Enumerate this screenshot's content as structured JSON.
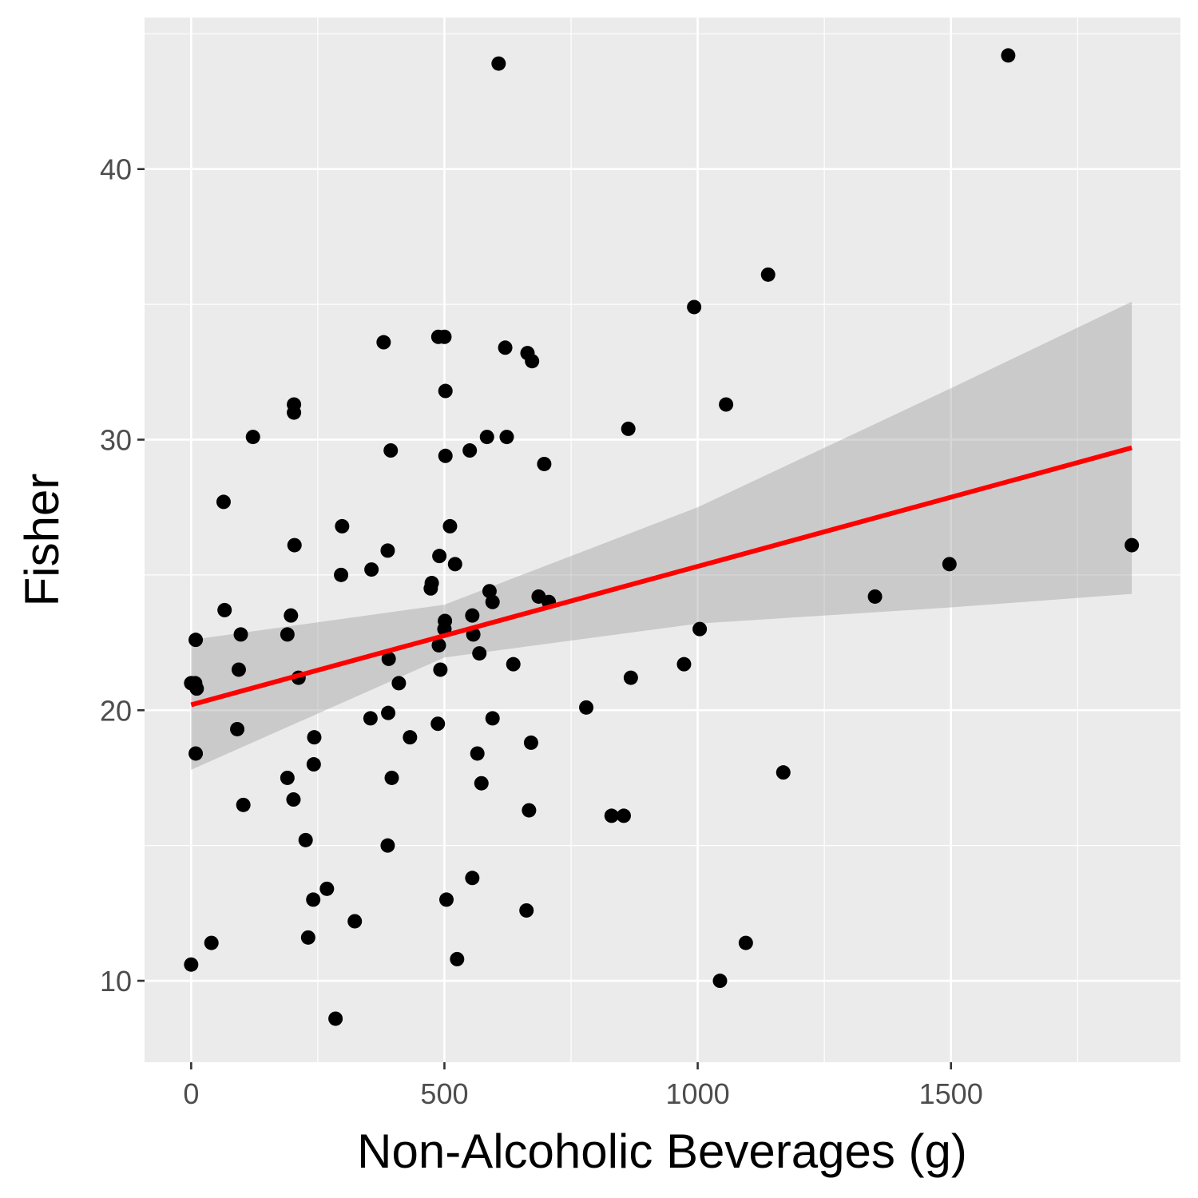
{
  "chart_data": {
    "type": "scatter",
    "title": "",
    "xlabel": "Non-Alcoholic Beverages (g)",
    "ylabel": "Fisher",
    "xlim": [
      -92,
      1953
    ],
    "ylim": [
      6.99,
      45.6
    ],
    "x_ticks": [
      0,
      500,
      1000,
      1500
    ],
    "x_tick_labels": [
      "0",
      "500",
      "1000",
      "1500"
    ],
    "y_ticks": [
      10,
      20,
      30,
      40
    ],
    "y_tick_labels": [
      "10",
      "20",
      "30",
      "40"
    ],
    "grid": true,
    "legend": "none",
    "colors": {
      "panel_background": "#ebebeb",
      "grid": "#ffffff",
      "points": "#000000",
      "fit_line": "#ff0000",
      "confidence_band": "#999999"
    },
    "points": [
      [
        0,
        21.0
      ],
      [
        0,
        10.6
      ],
      [
        8,
        21.0
      ],
      [
        9,
        18.4
      ],
      [
        9,
        22.6
      ],
      [
        11,
        20.8
      ],
      [
        40,
        11.4
      ],
      [
        64,
        27.7
      ],
      [
        66,
        23.7
      ],
      [
        91,
        19.3
      ],
      [
        94,
        21.5
      ],
      [
        98,
        22.8
      ],
      [
        103,
        16.5
      ],
      [
        122,
        30.1
      ],
      [
        190,
        22.8
      ],
      [
        190,
        17.5
      ],
      [
        197,
        23.5
      ],
      [
        202,
        16.7
      ],
      [
        203,
        31.3
      ],
      [
        203,
        31.0
      ],
      [
        204,
        26.1
      ],
      [
        212,
        21.2
      ],
      [
        226,
        15.2
      ],
      [
        231,
        11.6
      ],
      [
        241,
        13.0
      ],
      [
        242,
        18.0
      ],
      [
        243,
        19.0
      ],
      [
        268,
        13.4
      ],
      [
        285,
        8.6
      ],
      [
        296,
        25.0
      ],
      [
        298,
        26.8
      ],
      [
        323,
        12.2
      ],
      [
        354,
        19.7
      ],
      [
        356,
        25.2
      ],
      [
        380,
        33.6
      ],
      [
        388,
        25.9
      ],
      [
        388,
        15.0
      ],
      [
        389,
        19.9
      ],
      [
        390,
        21.9
      ],
      [
        394,
        29.6
      ],
      [
        396,
        17.5
      ],
      [
        410,
        21.0
      ],
      [
        432,
        19.0
      ],
      [
        473,
        24.5
      ],
      [
        475,
        24.7
      ],
      [
        487,
        19.5
      ],
      [
        488,
        33.8
      ],
      [
        489,
        22.4
      ],
      [
        490,
        25.7
      ],
      [
        492,
        21.5
      ],
      [
        500,
        33.8
      ],
      [
        500,
        23.0
      ],
      [
        501,
        23.3
      ],
      [
        502,
        31.8
      ],
      [
        502,
        29.4
      ],
      [
        504,
        13.0
      ],
      [
        511,
        26.8
      ],
      [
        521,
        25.4
      ],
      [
        525,
        10.8
      ],
      [
        550,
        29.6
      ],
      [
        555,
        23.5
      ],
      [
        555,
        13.8
      ],
      [
        557,
        22.8
      ],
      [
        565,
        18.4
      ],
      [
        569,
        22.1
      ],
      [
        573,
        17.3
      ],
      [
        584,
        30.1
      ],
      [
        589,
        24.4
      ],
      [
        595,
        24.0
      ],
      [
        595,
        19.7
      ],
      [
        607,
        43.9
      ],
      [
        620,
        33.4
      ],
      [
        623,
        30.1
      ],
      [
        636,
        21.7
      ],
      [
        662,
        12.6
      ],
      [
        664,
        33.2
      ],
      [
        667,
        16.3
      ],
      [
        671,
        18.8
      ],
      [
        673,
        32.9
      ],
      [
        686,
        24.2
      ],
      [
        697,
        29.1
      ],
      [
        706,
        24.0
      ],
      [
        780,
        20.1
      ],
      [
        830,
        16.1
      ],
      [
        854,
        16.1
      ],
      [
        863,
        30.4
      ],
      [
        868,
        21.2
      ],
      [
        973,
        21.7
      ],
      [
        993,
        34.9
      ],
      [
        1004,
        23.0
      ],
      [
        1044,
        10.0
      ],
      [
        1056,
        31.3
      ],
      [
        1095,
        11.4
      ],
      [
        1139,
        36.1
      ],
      [
        1169,
        17.7
      ],
      [
        1350,
        24.2
      ],
      [
        1497,
        25.4
      ],
      [
        1613,
        44.2
      ],
      [
        1857,
        26.1
      ]
    ],
    "fit_line": {
      "x": [
        0,
        1857
      ],
      "y": [
        20.2,
        29.7
      ]
    },
    "confidence_band": {
      "x": [
        0,
        500,
        1000,
        1500,
        1857
      ],
      "lower": [
        17.8,
        21.95,
        23.2,
        23.8,
        24.3
      ],
      "upper": [
        22.6,
        23.9,
        27.5,
        31.9,
        35.1
      ]
    }
  }
}
